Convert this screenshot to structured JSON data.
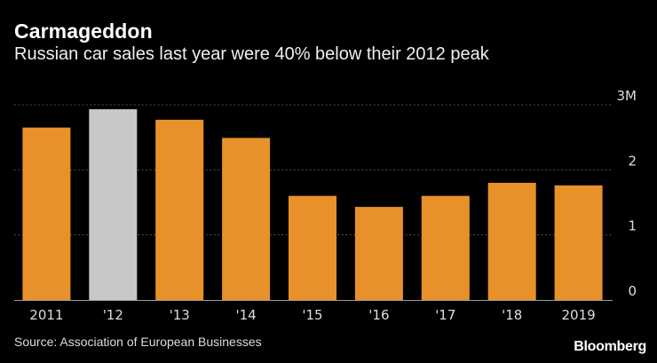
{
  "chart_data": {
    "type": "bar",
    "title": "Carmageddon",
    "subtitle": "Russian car sales last year were 40% below their 2012 peak",
    "categories": [
      "2011",
      "'12",
      "'13",
      "'14",
      "'15",
      "'16",
      "'17",
      "'18",
      "2019"
    ],
    "values": [
      2.65,
      2.93,
      2.77,
      2.49,
      1.6,
      1.43,
      1.6,
      1.8,
      1.76
    ],
    "unit": "M",
    "ylim": [
      0,
      3
    ],
    "yticks": [
      "0",
      "1",
      "2",
      "3M"
    ],
    "ytick_values": [
      0,
      1,
      2,
      3
    ],
    "highlight_index": 1,
    "grid": true,
    "xlabel": "",
    "ylabel": "",
    "colors": {
      "bar": "#e8912a",
      "highlight": "#c8c8c8",
      "grid": "#6a6a6a",
      "axis": "#9a9a9a"
    }
  },
  "source": "Source: Association of European Businesses",
  "brand": "Bloomberg"
}
